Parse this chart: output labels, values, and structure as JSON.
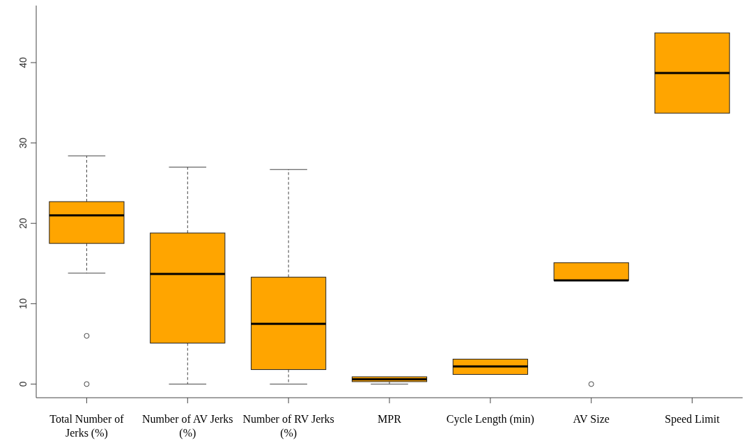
{
  "chart_data": {
    "type": "box",
    "categories": [
      "Total Number of Jerks (%)",
      "Number of AV Jerks (%)",
      "Number of RV Jerks (%)",
      "MPR",
      "Cycle Length (min)",
      "AV Size",
      "Speed Limit"
    ],
    "color": "#ffa500",
    "boxes": [
      {
        "low": 13.8,
        "q1": 17.5,
        "median": 21.0,
        "q3": 22.7,
        "high": 28.4,
        "outliers": [
          6,
          0
        ]
      },
      {
        "low": 0,
        "q1": 5.1,
        "median": 13.7,
        "q3": 18.8,
        "high": 27.0
      },
      {
        "low": 0,
        "q1": 1.8,
        "median": 7.5,
        "q3": 13.3,
        "high": 26.7
      },
      {
        "low": 0,
        "q1": 0.3,
        "median": 0.6,
        "q3": 0.9,
        "high": 0.9
      },
      {
        "low": 1.2,
        "q1": 1.2,
        "median": 2.2,
        "q3": 3.1,
        "high": 3.1
      },
      {
        "low": 12.9,
        "q1": 12.9,
        "median": 12.9,
        "q3": 15.1,
        "high": 15.1,
        "outliers": [
          0
        ]
      },
      {
        "low": 33.7,
        "q1": 33.7,
        "median": 38.7,
        "q3": 43.7,
        "high": 43.7
      }
    ],
    "ylim": [
      -1.7,
      47.1
    ],
    "yticks": [
      0,
      10,
      20,
      30,
      40
    ],
    "grid": false
  }
}
